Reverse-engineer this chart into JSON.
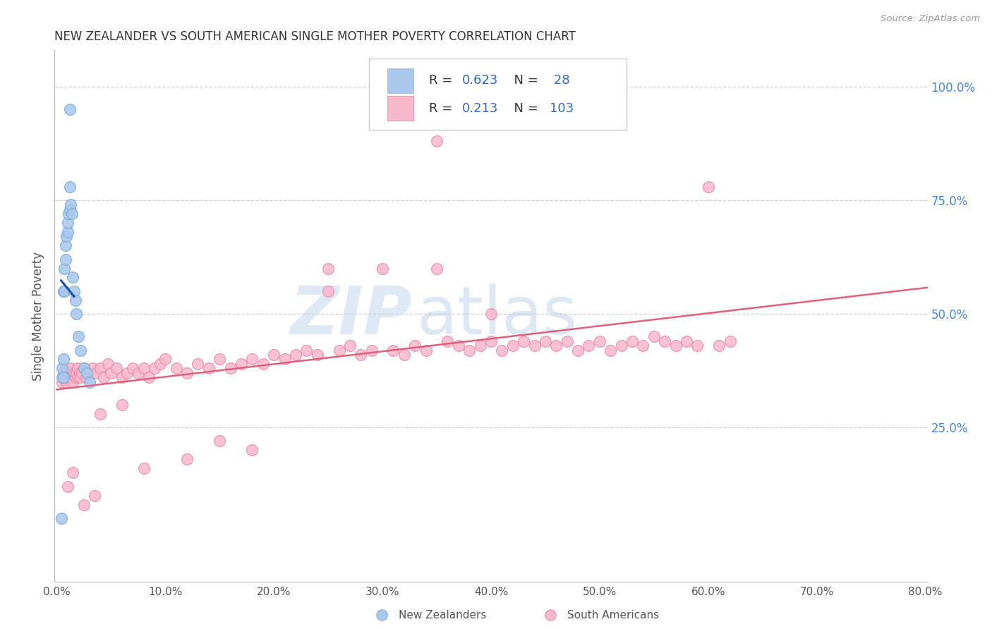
{
  "title": "NEW ZEALANDER VS SOUTH AMERICAN SINGLE MOTHER POVERTY CORRELATION CHART",
  "source": "Source: ZipAtlas.com",
  "ylabel": "Single Mother Poverty",
  "nz_R": 0.623,
  "nz_N": 28,
  "sa_R": 0.213,
  "sa_N": 103,
  "xlim": [
    -0.002,
    0.802
  ],
  "ylim": [
    -0.09,
    1.08
  ],
  "xticks": [
    0.0,
    0.1,
    0.2,
    0.3,
    0.4,
    0.5,
    0.6,
    0.7,
    0.8
  ],
  "yticks_right": [
    0.25,
    0.5,
    0.75,
    1.0
  ],
  "nz_color": "#aac8ec",
  "nz_edge": "#7aaedc",
  "sa_color": "#f8b8cc",
  "sa_edge": "#e88aaa",
  "nz_line_color": "#1a4faa",
  "sa_line_color": "#e0607a",
  "background": "#ffffff",
  "grid_color": "#cccccc",
  "title_color": "#333333",
  "right_tick_color": "#4488dd",
  "legend_text_dark": "#333333",
  "legend_text_blue": "#3366cc",
  "nz_x": [
    0.005,
    0.005,
    0.006,
    0.006,
    0.007,
    0.007,
    0.008,
    0.008,
    0.009,
    0.01,
    0.01,
    0.011,
    0.012,
    0.012,
    0.013,
    0.014,
    0.015,
    0.016,
    0.017,
    0.018,
    0.02,
    0.022,
    0.025,
    0.028,
    0.03,
    0.012,
    0.006,
    0.004
  ],
  "nz_y": [
    0.36,
    0.38,
    0.4,
    0.55,
    0.55,
    0.6,
    0.62,
    0.65,
    0.67,
    0.68,
    0.7,
    0.72,
    0.73,
    0.95,
    0.74,
    0.72,
    0.58,
    0.55,
    0.53,
    0.5,
    0.45,
    0.42,
    0.38,
    0.37,
    0.35,
    0.78,
    0.36,
    0.05
  ],
  "sa_x": [
    0.005,
    0.006,
    0.007,
    0.008,
    0.009,
    0.01,
    0.011,
    0.012,
    0.013,
    0.014,
    0.015,
    0.016,
    0.017,
    0.018,
    0.019,
    0.02,
    0.021,
    0.022,
    0.023,
    0.025,
    0.027,
    0.03,
    0.033,
    0.036,
    0.04,
    0.043,
    0.047,
    0.05,
    0.055,
    0.06,
    0.065,
    0.07,
    0.075,
    0.08,
    0.085,
    0.09,
    0.095,
    0.1,
    0.11,
    0.12,
    0.13,
    0.14,
    0.15,
    0.16,
    0.17,
    0.18,
    0.19,
    0.2,
    0.21,
    0.22,
    0.23,
    0.24,
    0.25,
    0.26,
    0.27,
    0.28,
    0.29,
    0.3,
    0.31,
    0.32,
    0.33,
    0.34,
    0.35,
    0.36,
    0.37,
    0.38,
    0.39,
    0.4,
    0.41,
    0.42,
    0.43,
    0.44,
    0.45,
    0.46,
    0.47,
    0.48,
    0.49,
    0.5,
    0.51,
    0.52,
    0.53,
    0.54,
    0.55,
    0.56,
    0.57,
    0.58,
    0.59,
    0.6,
    0.61,
    0.62,
    0.35,
    0.4,
    0.25,
    0.15,
    0.18,
    0.12,
    0.08,
    0.06,
    0.04,
    0.035,
    0.025,
    0.015,
    0.01
  ],
  "sa_y": [
    0.35,
    0.37,
    0.36,
    0.38,
    0.35,
    0.36,
    0.37,
    0.36,
    0.38,
    0.36,
    0.35,
    0.37,
    0.36,
    0.37,
    0.38,
    0.36,
    0.37,
    0.36,
    0.37,
    0.38,
    0.36,
    0.37,
    0.38,
    0.37,
    0.38,
    0.36,
    0.39,
    0.37,
    0.38,
    0.36,
    0.37,
    0.38,
    0.37,
    0.38,
    0.36,
    0.38,
    0.39,
    0.4,
    0.38,
    0.37,
    0.39,
    0.38,
    0.4,
    0.38,
    0.39,
    0.4,
    0.39,
    0.41,
    0.4,
    0.41,
    0.42,
    0.41,
    0.6,
    0.42,
    0.43,
    0.41,
    0.42,
    0.6,
    0.42,
    0.41,
    0.43,
    0.42,
    0.88,
    0.44,
    0.43,
    0.42,
    0.43,
    0.44,
    0.42,
    0.43,
    0.44,
    0.43,
    0.44,
    0.43,
    0.44,
    0.42,
    0.43,
    0.44,
    0.42,
    0.43,
    0.44,
    0.43,
    0.45,
    0.44,
    0.43,
    0.44,
    0.43,
    0.78,
    0.43,
    0.44,
    0.6,
    0.5,
    0.55,
    0.22,
    0.2,
    0.18,
    0.16,
    0.3,
    0.28,
    0.1,
    0.08,
    0.15,
    0.12
  ]
}
